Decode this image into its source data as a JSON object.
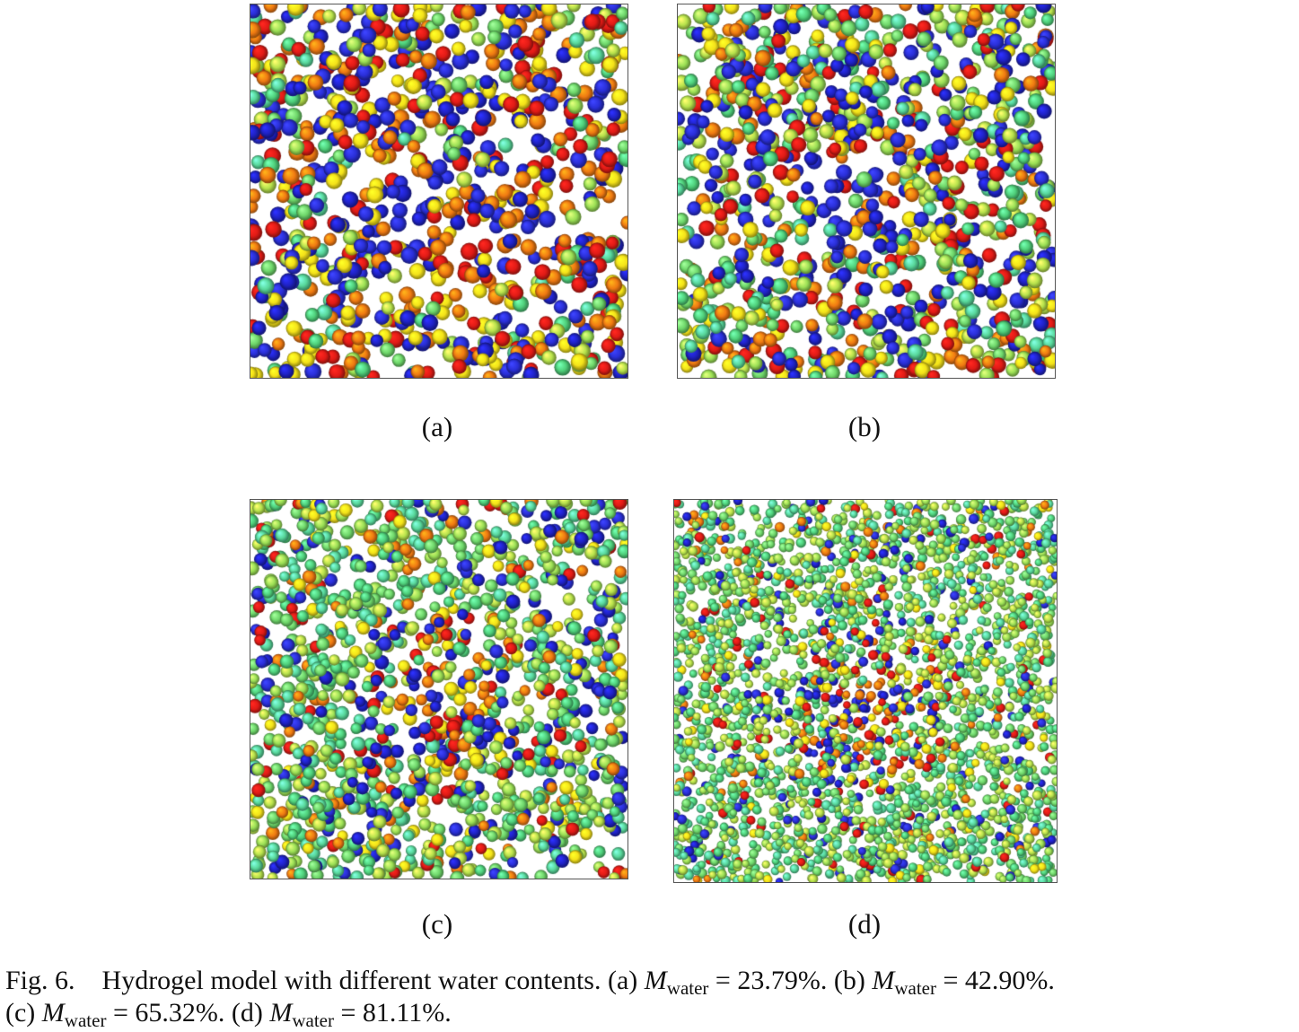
{
  "figure": {
    "panels": [
      {
        "id": "a",
        "label": "(a)",
        "water_fraction": 0.2379
      },
      {
        "id": "b",
        "label": "(b)",
        "water_fraction": 0.429
      },
      {
        "id": "c",
        "label": "(c)",
        "water_fraction": 0.6532
      },
      {
        "id": "d",
        "label": "(d)",
        "water_fraction": 0.8111
      }
    ],
    "particle_colors": {
      "water": [
        "#6ed66a",
        "#9adf55",
        "#58d79a",
        "#b6e24c",
        "#4fcf7a"
      ],
      "polymer": [
        "#1f22c4",
        "#e01b16",
        "#f4e21a",
        "#f07a12",
        "#2a2fd8"
      ]
    }
  },
  "caption": {
    "fig_number": "Fig. 6.",
    "text": "Hydrogel model with different water contents.",
    "items": [
      {
        "tag": "(a)",
        "symbol": "M",
        "subscript": "water",
        "relation": "=",
        "value": "23.79%."
      },
      {
        "tag": "(b)",
        "symbol": "M",
        "subscript": "water",
        "relation": "=",
        "value": "42.90%."
      },
      {
        "tag": "(c)",
        "symbol": "M",
        "subscript": "water",
        "relation": "=",
        "value": "65.32%."
      },
      {
        "tag": "(d)",
        "symbol": "M",
        "subscript": "water",
        "relation": "=",
        "value": "81.11%."
      }
    ]
  }
}
